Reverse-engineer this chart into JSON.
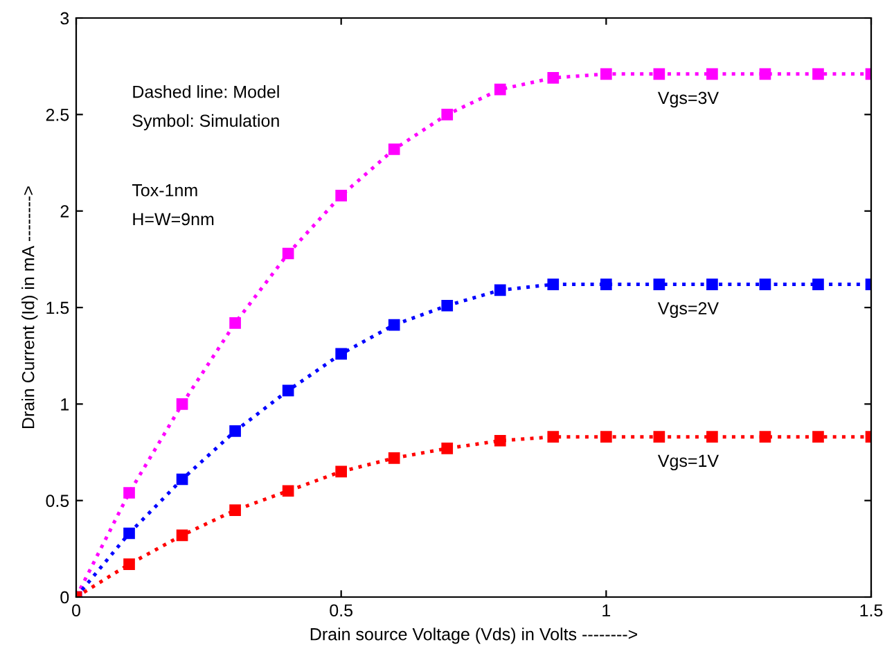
{
  "chart_data": {
    "type": "line",
    "xlabel": "Drain source Voltage (Vds) in Volts -------->",
    "ylabel": "Drain Current (Id) in mA -------->",
    "x": [
      0,
      0.1,
      0.2,
      0.3,
      0.4,
      0.5,
      0.6,
      0.7,
      0.8,
      0.9,
      1.0,
      1.1,
      1.2,
      1.3,
      1.4,
      1.5
    ],
    "series": [
      {
        "name": "Vgs=3V",
        "color": "#ff00ff",
        "values": [
          0,
          0.54,
          1.0,
          1.42,
          1.78,
          2.08,
          2.32,
          2.5,
          2.63,
          2.69,
          2.71,
          2.71,
          2.71,
          2.71,
          2.71,
          2.71
        ]
      },
      {
        "name": "Vgs=2V",
        "color": "#0000ff",
        "values": [
          0,
          0.33,
          0.61,
          0.86,
          1.07,
          1.26,
          1.41,
          1.51,
          1.59,
          1.62,
          1.62,
          1.62,
          1.62,
          1.62,
          1.62,
          1.62
        ]
      },
      {
        "name": "Vgs=1V",
        "color": "#ff0000",
        "values": [
          0,
          0.17,
          0.32,
          0.45,
          0.55,
          0.65,
          0.72,
          0.77,
          0.81,
          0.83,
          0.83,
          0.83,
          0.83,
          0.83,
          0.83,
          0.83
        ]
      }
    ],
    "annotations": [
      "Dashed line: Model",
      "Symbol: Simulation",
      "Tox-1nm",
      "H=W=9nm"
    ],
    "xlim": [
      0,
      1.5
    ],
    "ylim": [
      0,
      3
    ],
    "xticks": [
      0,
      0.5,
      1,
      1.5
    ],
    "yticks": [
      0,
      0.5,
      1,
      1.5,
      2,
      2.5,
      3
    ],
    "marker": "square",
    "line_style": "dotted",
    "grid": false,
    "legend": false
  }
}
